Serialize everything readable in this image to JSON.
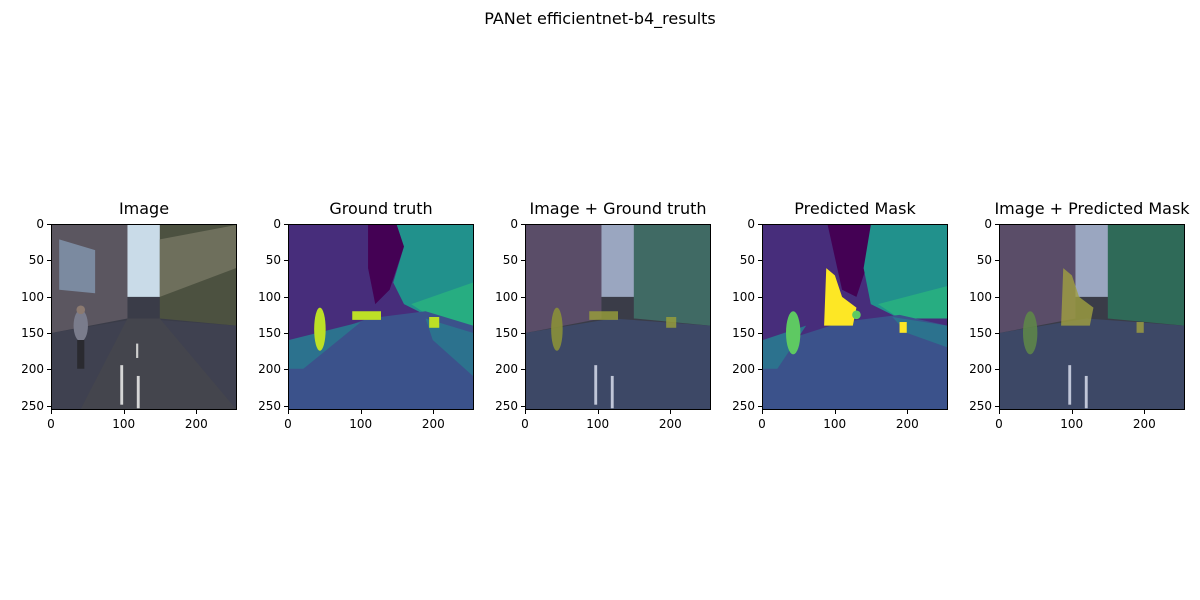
{
  "figure": {
    "title": "PANet efficientnet-b4_results"
  },
  "panels": [
    {
      "title": "Image",
      "kind": "image"
    },
    {
      "title": "Ground truth",
      "kind": "gt"
    },
    {
      "title": "Image + Ground truth",
      "kind": "image_gt"
    },
    {
      "title": "Predicted Mask",
      "kind": "pred"
    },
    {
      "title": "Image + Predicted Mask",
      "kind": "image_pred"
    }
  ],
  "axes": {
    "yticks": [
      "0",
      "50",
      "100",
      "150",
      "200",
      "250"
    ],
    "xticks": [
      "0",
      "100",
      "200"
    ]
  },
  "colors": {
    "sky": "#440154",
    "building": "#472d7b",
    "trees": "#21918c",
    "vegetation": "#27ad81",
    "road": "#3b528b",
    "sidewalk": "#2c728e",
    "person": "#bddf26",
    "predicted_person": "#fde725",
    "rider": "#5ec962"
  }
}
